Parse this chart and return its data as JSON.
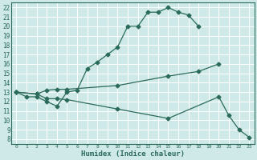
{
  "xlabel": "Humidex (Indice chaleur)",
  "bg_color": "#cfe8e8",
  "grid_color": "#b8d8d8",
  "line_color": "#2a6b5a",
  "ylim": [
    7.5,
    22.5
  ],
  "xlim": [
    -0.5,
    23.5
  ],
  "yticks": [
    8,
    9,
    10,
    11,
    12,
    13,
    14,
    15,
    16,
    17,
    18,
    19,
    20,
    21,
    22
  ],
  "xticks": [
    0,
    1,
    2,
    3,
    4,
    5,
    6,
    7,
    8,
    9,
    10,
    11,
    12,
    13,
    14,
    15,
    16,
    17,
    18,
    19,
    20,
    21,
    22,
    23
  ],
  "curve1_x": [
    0,
    1,
    2,
    3,
    4,
    5,
    6,
    7,
    8,
    9,
    10,
    11,
    12,
    13,
    14,
    15,
    16,
    17,
    18
  ],
  "curve1_y": [
    13,
    12.5,
    12.5,
    12,
    11.5,
    13,
    13.2,
    15.5,
    16.2,
    17.0,
    17.8,
    20.0,
    20.0,
    21.5,
    21.5,
    22.0,
    21.5,
    21.2,
    20.0
  ],
  "curve2_x": [
    0,
    2,
    3,
    4,
    5,
    10,
    15,
    18,
    20
  ],
  "curve2_y": [
    13,
    12.8,
    13.2,
    13.3,
    13.3,
    13.7,
    14.7,
    15.2,
    16.0
  ],
  "curve3_x": [
    0,
    2,
    3,
    4,
    5,
    10,
    15,
    20,
    21,
    22,
    23
  ],
  "curve3_y": [
    13,
    12.8,
    12.3,
    12.3,
    12.2,
    11.2,
    10.2,
    12.5,
    10.5,
    9.0,
    8.2
  ],
  "markersize": 2.5
}
